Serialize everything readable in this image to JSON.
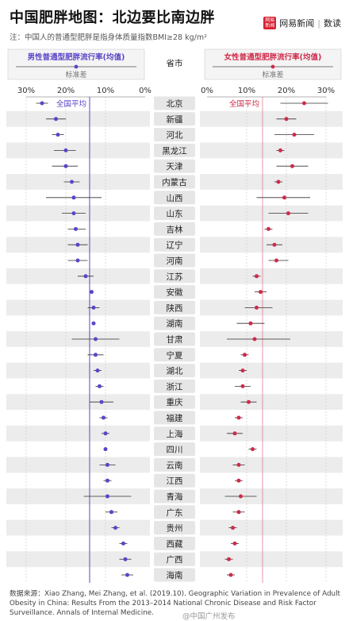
{
  "header": {
    "title": "中国肥胖地图：北边要比南边胖",
    "note": "注：中国人的普通型肥胖是指身体质量指数BMI≥28 kg/m²",
    "brand_logo": "网易新闻",
    "brand_name": "网易新闻",
    "brand_separator": "|",
    "brand_section": "数读"
  },
  "legend": {
    "male_title": "男性普通型肥胖流行率(均值)",
    "female_title": "女性普通型肥胖流行率(均值)",
    "std_label": "标准差",
    "province_header": "省市"
  },
  "chart_data": {
    "type": "scatter",
    "title": "中国肥胖地图：北边要比南边胖",
    "xlabel": "",
    "ylabel": "",
    "categories": [
      "北京",
      "新疆",
      "河北",
      "黑龙江",
      "天津",
      "内蒙古",
      "山西",
      "山东",
      "吉林",
      "辽宁",
      "河南",
      "江苏",
      "安徽",
      "陕西",
      "湖南",
      "甘肃",
      "宁夏",
      "湖北",
      "浙江",
      "重庆",
      "福建",
      "上海",
      "四川",
      "云南",
      "江西",
      "青海",
      "广东",
      "贵州",
      "西藏",
      "广西",
      "海南"
    ],
    "male": {
      "name": "男性普通型肥胖流行率(均值)",
      "x_ticks": [
        "30%",
        "20%",
        "10%",
        "0%"
      ],
      "xlim": [
        30,
        0
      ],
      "average_label": "全国平均",
      "average": 14,
      "values": [
        26,
        22.5,
        22,
        20,
        20,
        18.5,
        18,
        18,
        17.5,
        17,
        17,
        15,
        13.5,
        13,
        13,
        12.5,
        12.5,
        12,
        11.5,
        11,
        10.5,
        10,
        10,
        9.5,
        9.5,
        9.5,
        8.5,
        7.5,
        5.5,
        5,
        4.5
      ],
      "error_low": [
        24.5,
        20,
        20.5,
        17.5,
        17,
        16.5,
        11,
        15,
        15,
        14.5,
        14.5,
        13,
        13,
        11.5,
        12.5,
        6.5,
        10.5,
        11,
        10.5,
        8,
        9.5,
        9,
        9.5,
        7.5,
        8.5,
        3.5,
        7,
        6.5,
        4.5,
        3.5,
        3
      ],
      "error_high": [
        27.5,
        25,
        23.5,
        23,
        23.5,
        20.5,
        25,
        21,
        19.5,
        19.5,
        19.5,
        17,
        14,
        14.5,
        13.5,
        18.5,
        14.5,
        13,
        12.5,
        14,
        11.5,
        11,
        10.5,
        11.5,
        10.5,
        15.5,
        10,
        8.5,
        6.5,
        6.5,
        6
      ]
    },
    "female": {
      "name": "女性普通型肥胖流行率(均值)",
      "x_ticks": [
        "0%",
        "10%",
        "20%",
        "30%"
      ],
      "xlim": [
        0,
        30
      ],
      "average_label": "全国平均",
      "average": 14,
      "values": [
        24.5,
        20,
        22,
        18.5,
        21.5,
        18,
        19.5,
        20.5,
        15.5,
        17,
        17.5,
        12.5,
        13.5,
        12.5,
        11,
        12,
        9.5,
        9,
        9,
        10.5,
        8,
        7,
        11.5,
        8,
        8,
        8.5,
        8,
        6.5,
        7,
        5.5,
        6
      ],
      "error_low": [
        18.5,
        17.5,
        17,
        17.5,
        17.5,
        17,
        12.5,
        15.5,
        14.5,
        15,
        15.5,
        11.5,
        12,
        9.5,
        7.5,
        5,
        8.5,
        8,
        7,
        8.5,
        7,
        5,
        10.5,
        6.5,
        7,
        4.5,
        6.5,
        5.5,
        6,
        4.5,
        5
      ],
      "error_high": [
        30.5,
        22.5,
        27,
        19.5,
        25.5,
        19,
        26,
        25.5,
        16.5,
        19,
        20.5,
        13.5,
        15,
        16.5,
        14.5,
        21,
        10.5,
        10,
        11,
        12.5,
        9,
        9,
        12.5,
        9.5,
        9,
        12.5,
        9.5,
        7.5,
        8,
        6.5,
        7
      ]
    },
    "colors": {
      "male": "#5a45c8",
      "female": "#d02a4a",
      "error_bar": "#333333",
      "row_band": "#ececec",
      "label_box": "#e6e6e6"
    }
  },
  "footer": {
    "source": "数据来源：Xiao Zhang, Mei Zhang, et al. (2019.10). Geographic Variation in Prevalence of Adult Obesity in China: Results From the 2013–2014 National Chronic Disease and Risk Factor Surveillance. Annals of Internal Medicine.",
    "watermark": "@中国广州发布"
  }
}
